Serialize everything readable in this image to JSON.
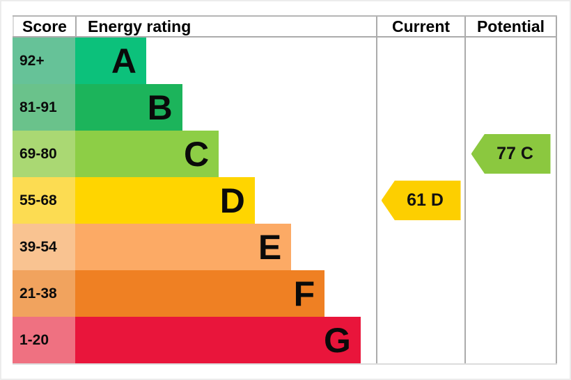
{
  "header": {
    "score": "Score",
    "energy_rating": "Energy rating",
    "current": "Current",
    "potential": "Potential"
  },
  "chart_data": {
    "type": "bar",
    "subtype": "epc-energy-rating-chart",
    "title": "Energy rating",
    "columns": [
      "Score",
      "Energy rating",
      "Current",
      "Potential"
    ],
    "bands": [
      {
        "letter": "A",
        "score_range": "92+",
        "bar_color": "#0cc17b",
        "score_cell_color": "#66c298",
        "bar_width_pct": 23.6
      },
      {
        "letter": "B",
        "score_range": "81-91",
        "bar_color": "#1cb45b",
        "score_cell_color": "#6ac28b",
        "bar_width_pct": 35.6
      },
      {
        "letter": "C",
        "score_range": "69-80",
        "bar_color": "#8dce46",
        "score_cell_color": "#aad873",
        "bar_width_pct": 47.7
      },
      {
        "letter": "D",
        "score_range": "55-68",
        "bar_color": "#ffd500",
        "score_cell_color": "#fcdc52",
        "bar_width_pct": 59.7
      },
      {
        "letter": "E",
        "score_range": "39-54",
        "bar_color": "#fcaa65",
        "score_cell_color": "#f9c391",
        "bar_width_pct": 71.8
      },
      {
        "letter": "F",
        "score_range": "21-38",
        "bar_color": "#ef8023",
        "score_cell_color": "#f1a35e",
        "bar_width_pct": 82.9
      },
      {
        "letter": "G",
        "score_range": "1-20",
        "bar_color": "#e9153b",
        "score_cell_color": "#ef7181",
        "bar_width_pct": 94.9
      }
    ],
    "markers": [
      {
        "column": "current",
        "label": "61 D",
        "value": 61,
        "band": "D",
        "color": "#fdcf00",
        "row_index": 3
      },
      {
        "column": "potential",
        "label": "77 C",
        "value": 77,
        "band": "C",
        "color": "#8bc83f",
        "row_index": 2
      }
    ],
    "legend_position": "none",
    "grid": "column-borders-only",
    "value_range": [
      1,
      100
    ]
  },
  "colors": {
    "border": "#ababab",
    "light_border": "#dcdcdc",
    "background": "#ffffff",
    "text": "#000000"
  }
}
